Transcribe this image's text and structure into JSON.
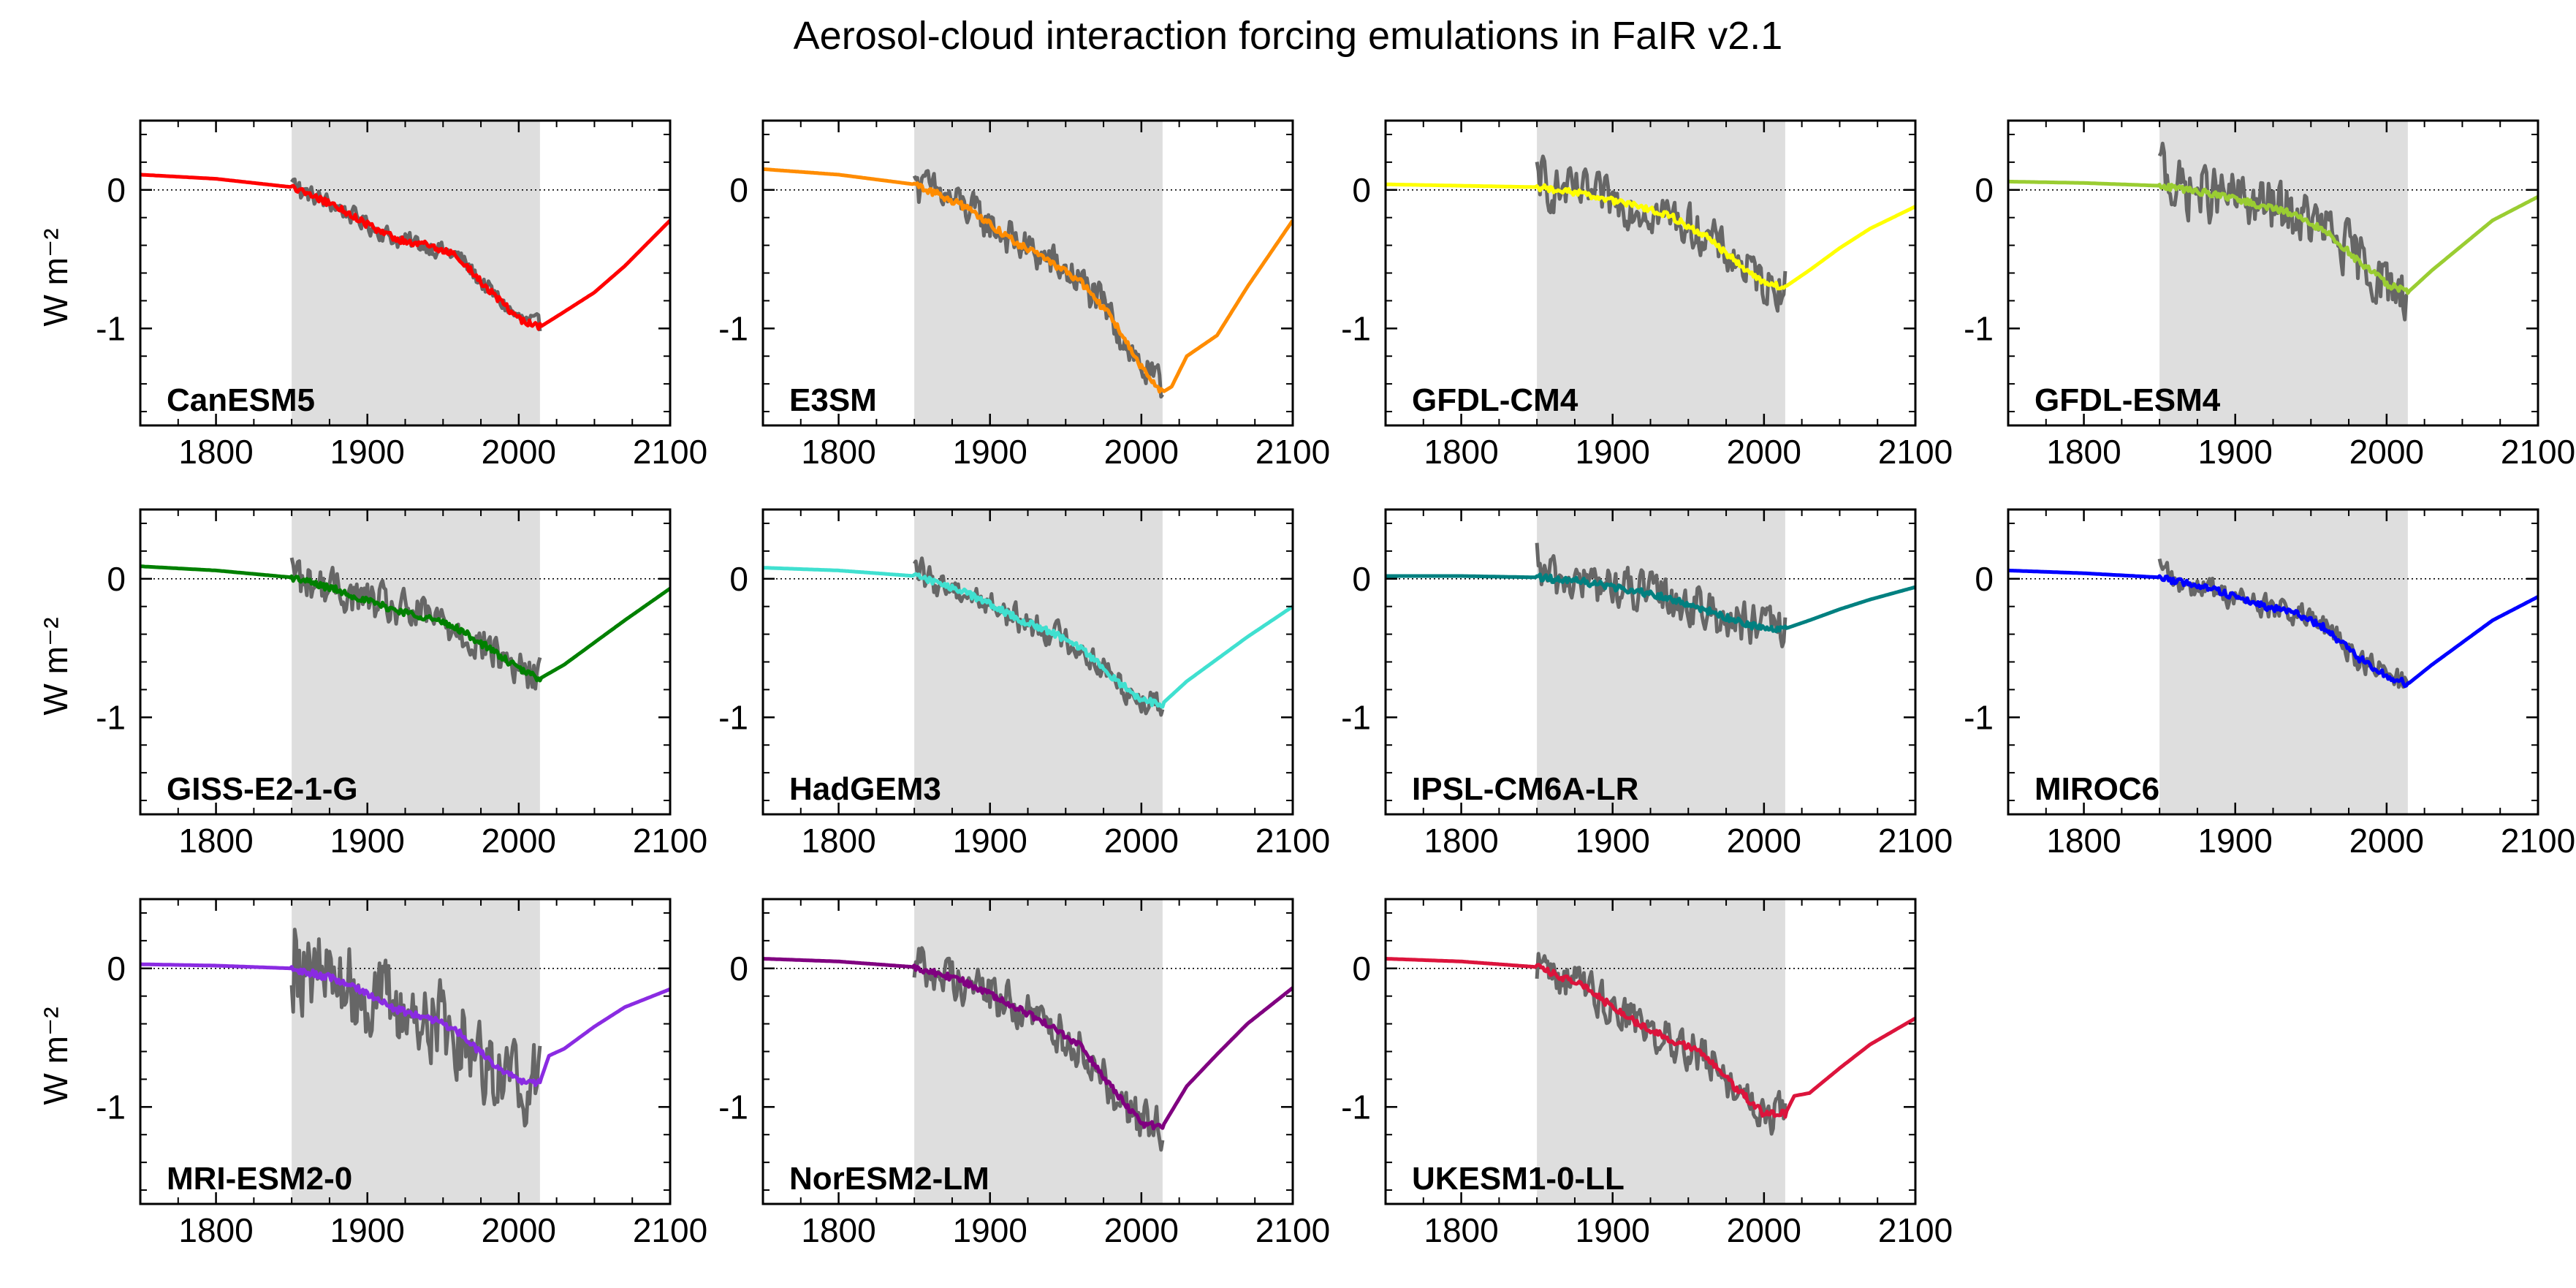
{
  "title": "Aerosol-cloud interaction forcing emulations in FaIR v2.1",
  "ylabel": "W m⁻²",
  "chart_data": {
    "type": "line",
    "title": "Aerosol-cloud interaction forcing emulations in FaIR v2.1",
    "xlim": [
      1750,
      2100
    ],
    "ylim": [
      -1.7,
      0.5
    ],
    "xticks": [
      1800,
      1900,
      2000,
      2100
    ],
    "yticks": [
      0,
      -1
    ],
    "shaded_period": [
      1850,
      2014
    ],
    "zero_line": "dotted",
    "observed_color": "#666666",
    "panels": [
      {
        "name": "CanESM5",
        "color": "#ff0000",
        "emu_x": [
          1750,
          1800,
          1850,
          1880,
          1900,
          1920,
          1940,
          1960,
          1980,
          2000,
          2014,
          2030,
          2050,
          2070,
          2100
        ],
        "emu_y": [
          0.11,
          0.08,
          0.02,
          -0.12,
          -0.25,
          -0.36,
          -0.4,
          -0.48,
          -0.72,
          -0.93,
          -0.99,
          -0.88,
          -0.74,
          -0.55,
          -0.22
        ],
        "amp": 0.06
      },
      {
        "name": "E3SM",
        "color": "#ff8c00",
        "emu_x": [
          1750,
          1800,
          1850,
          1880,
          1900,
          1920,
          1940,
          1960,
          1980,
          2000,
          2014,
          2020,
          2030,
          2050,
          2070,
          2100
        ],
        "emu_y": [
          0.15,
          0.11,
          0.04,
          -0.1,
          -0.25,
          -0.4,
          -0.52,
          -0.66,
          -0.92,
          -1.28,
          -1.46,
          -1.42,
          -1.2,
          -1.05,
          -0.7,
          -0.22
        ],
        "amp": 0.12
      },
      {
        "name": "GFDL-CM4",
        "color": "#ffff00",
        "emu_x": [
          1750,
          1800,
          1850,
          1880,
          1900,
          1920,
          1940,
          1960,
          1980,
          2000,
          2014,
          2030,
          2050,
          2070,
          2100
        ],
        "emu_y": [
          0.04,
          0.03,
          0.02,
          -0.03,
          -0.08,
          -0.13,
          -0.2,
          -0.32,
          -0.5,
          -0.67,
          -0.7,
          -0.58,
          -0.42,
          -0.28,
          -0.12
        ],
        "amp": 0.14
      },
      {
        "name": "GFDL-ESM4",
        "color": "#9acd32",
        "emu_x": [
          1750,
          1800,
          1850,
          1880,
          1900,
          1920,
          1940,
          1960,
          1980,
          2000,
          2014,
          2030,
          2050,
          2070,
          2100
        ],
        "emu_y": [
          0.06,
          0.05,
          0.03,
          -0.02,
          -0.07,
          -0.12,
          -0.18,
          -0.3,
          -0.5,
          -0.68,
          -0.74,
          -0.58,
          -0.4,
          -0.22,
          -0.05
        ],
        "amp": 0.18
      },
      {
        "name": "GISS-E2-1-G",
        "color": "#008000",
        "emu_x": [
          1750,
          1800,
          1850,
          1880,
          1900,
          1920,
          1940,
          1960,
          1980,
          2000,
          2014,
          2030,
          2050,
          2070,
          2100
        ],
        "emu_y": [
          0.09,
          0.06,
          0.01,
          -0.08,
          -0.16,
          -0.23,
          -0.28,
          -0.36,
          -0.5,
          -0.65,
          -0.72,
          -0.62,
          -0.46,
          -0.3,
          -0.07
        ],
        "amp": 0.13
      },
      {
        "name": "HadGEM3",
        "color": "#40e0d0",
        "emu_x": [
          1750,
          1800,
          1850,
          1880,
          1900,
          1920,
          1940,
          1960,
          1980,
          2000,
          2014,
          2030,
          2050,
          2070,
          2100
        ],
        "emu_y": [
          0.08,
          0.06,
          0.02,
          -0.08,
          -0.18,
          -0.3,
          -0.38,
          -0.5,
          -0.7,
          -0.88,
          -0.9,
          -0.74,
          -0.58,
          -0.42,
          -0.2
        ],
        "amp": 0.09
      },
      {
        "name": "IPSL-CM6A-LR",
        "color": "#008080",
        "emu_x": [
          1750,
          1800,
          1850,
          1880,
          1900,
          1920,
          1940,
          1960,
          1980,
          2000,
          2014,
          2030,
          2050,
          2070,
          2100
        ],
        "emu_y": [
          0.02,
          0.02,
          0.01,
          -0.02,
          -0.06,
          -0.1,
          -0.15,
          -0.22,
          -0.3,
          -0.36,
          -0.36,
          -0.3,
          -0.22,
          -0.15,
          -0.06
        ],
        "amp": 0.14
      },
      {
        "name": "MIROC6",
        "color": "#0000ff",
        "emu_x": [
          1750,
          1800,
          1850,
          1880,
          1900,
          1920,
          1940,
          1960,
          1980,
          2000,
          2014,
          2030,
          2050,
          2070,
          2100
        ],
        "emu_y": [
          0.06,
          0.04,
          0.01,
          -0.06,
          -0.13,
          -0.2,
          -0.25,
          -0.36,
          -0.56,
          -0.7,
          -0.76,
          -0.62,
          -0.46,
          -0.3,
          -0.13
        ],
        "amp": 0.08
      },
      {
        "name": "MRI-ESM2-0",
        "color": "#8a2be2",
        "emu_x": [
          1750,
          1800,
          1850,
          1880,
          1900,
          1920,
          1940,
          1960,
          1980,
          2000,
          2014,
          2020,
          2030,
          2050,
          2070,
          2100
        ],
        "emu_y": [
          0.03,
          0.02,
          0.0,
          -0.08,
          -0.18,
          -0.3,
          -0.35,
          -0.46,
          -0.66,
          -0.82,
          -0.82,
          -0.63,
          -0.58,
          -0.42,
          -0.28,
          -0.15
        ],
        "amp": 0.28
      },
      {
        "name": "NorESM2-LM",
        "color": "#800080",
        "emu_x": [
          1750,
          1800,
          1850,
          1880,
          1900,
          1920,
          1940,
          1960,
          1980,
          2000,
          2014,
          2030,
          2050,
          2070,
          2100
        ],
        "emu_y": [
          0.07,
          0.05,
          0.01,
          -0.08,
          -0.18,
          -0.3,
          -0.42,
          -0.56,
          -0.85,
          -1.12,
          -1.14,
          -0.85,
          -0.62,
          -0.4,
          -0.14
        ],
        "amp": 0.14
      },
      {
        "name": "UKESM1-0-LL",
        "color": "#dc143c",
        "emu_x": [
          1750,
          1800,
          1850,
          1880,
          1900,
          1920,
          1940,
          1960,
          1980,
          2000,
          2014,
          2020,
          2030,
          2050,
          2070,
          2100
        ],
        "emu_y": [
          0.07,
          0.05,
          0.01,
          -0.12,
          -0.28,
          -0.42,
          -0.52,
          -0.62,
          -0.85,
          -1.05,
          -1.05,
          -0.92,
          -0.9,
          -0.72,
          -0.55,
          -0.36
        ],
        "amp": 0.13
      }
    ]
  }
}
